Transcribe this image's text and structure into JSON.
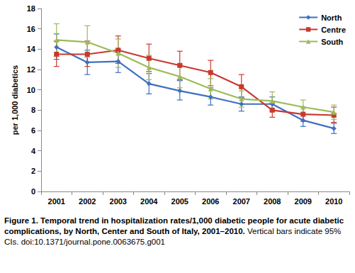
{
  "chart_data": {
    "type": "line",
    "title": "Figure 1. Temporal trend in hospitalization rates/1,000 diabetic people for acute diabetic complications, by North, Center and South of Italy, 2001–2010.",
    "subtitle": "Vertical bars indicate 95% CIs.",
    "annotations": [
      "doi:10.1371/journal.pone.0063675.g001"
    ],
    "y_label": "per 1,000 diabetics",
    "categories": [
      "2001",
      "2002",
      "2003",
      "2004",
      "2005",
      "2006",
      "2007",
      "2008",
      "2009",
      "2010"
    ],
    "series": [
      {
        "name": "North",
        "color": "#3f6fc2",
        "marker": "diamond",
        "values": [
          14.2,
          12.7,
          12.8,
          10.6,
          9.9,
          9.3,
          8.6,
          8.6,
          7.0,
          6.2
        ],
        "ci_lower": [
          13.0,
          11.5,
          11.7,
          9.6,
          9.0,
          8.5,
          7.9,
          7.9,
          6.4,
          5.7
        ],
        "ci_upper": [
          15.5,
          13.9,
          14.0,
          11.6,
          10.9,
          10.2,
          9.3,
          9.3,
          7.6,
          6.7
        ]
      },
      {
        "name": "Centre",
        "color": "#c8392f",
        "marker": "square",
        "values": [
          13.5,
          13.5,
          13.9,
          13.1,
          12.4,
          11.7,
          10.3,
          8.0,
          7.6,
          7.5
        ],
        "ci_lower": [
          12.3,
          12.3,
          12.6,
          11.8,
          11.0,
          10.4,
          9.2,
          7.3,
          6.9,
          6.8
        ],
        "ci_upper": [
          14.8,
          14.8,
          15.3,
          14.5,
          13.8,
          12.9,
          11.5,
          8.7,
          8.3,
          8.3
        ]
      },
      {
        "name": "South",
        "color": "#9bbb59",
        "marker": "triangle",
        "values": [
          14.9,
          14.7,
          13.6,
          12.2,
          11.3,
          10.1,
          9.1,
          8.9,
          8.3,
          7.8
        ],
        "ci_lower": [
          13.3,
          13.2,
          12.2,
          11.0,
          10.2,
          9.1,
          8.3,
          8.1,
          7.6,
          7.1
        ],
        "ci_upper": [
          16.5,
          16.3,
          15.0,
          13.4,
          12.5,
          11.1,
          9.9,
          9.8,
          9.0,
          8.5
        ]
      }
    ],
    "ylim": [
      0,
      18
    ],
    "yticks": [
      0,
      2,
      4,
      6,
      8,
      10,
      12,
      14,
      16,
      18
    ],
    "grid": false,
    "legend": "upper right"
  }
}
